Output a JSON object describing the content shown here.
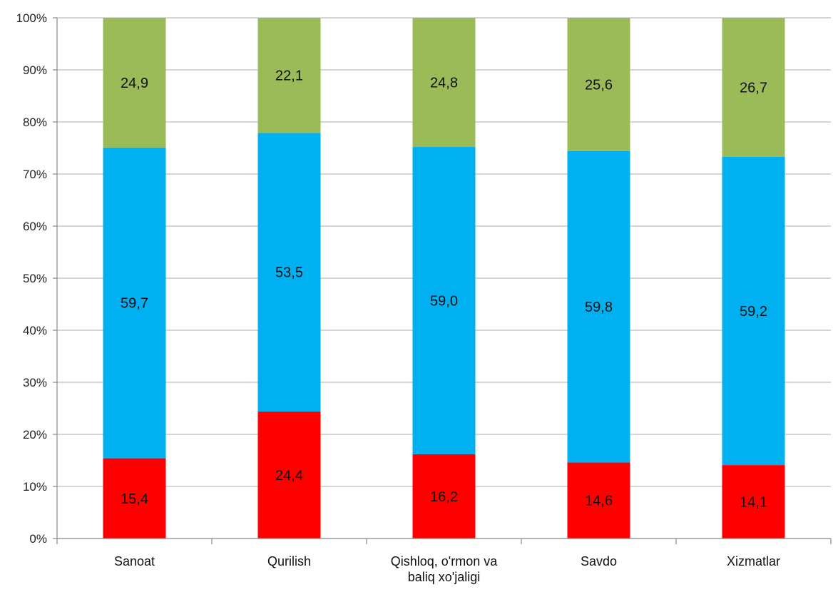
{
  "chart_data": {
    "type": "bar",
    "stacked": true,
    "percent_stacked": true,
    "categories": [
      "Sanoat",
      "Qurilish",
      "Qishloq, o'rmon va baliq xo'jaligi",
      "Savdo",
      "Xizmatlar"
    ],
    "category_lines": [
      [
        "Sanoat"
      ],
      [
        "Qurilish"
      ],
      [
        "Qishloq, o'rmon va",
        "baliq xo'jaligi"
      ],
      [
        "Savdo"
      ],
      [
        "Xizmatlar"
      ]
    ],
    "series": [
      {
        "color": "#ff0000",
        "values": [
          15.4,
          24.4,
          16.2,
          14.6,
          14.1
        ],
        "labels": [
          "15,4",
          "24,4",
          "16,2",
          "14,6",
          "14,1"
        ]
      },
      {
        "color": "#00b0f0",
        "values": [
          59.7,
          53.5,
          59.0,
          59.8,
          59.2
        ],
        "labels": [
          "59,7",
          "53,5",
          "59,0",
          "59,8",
          "59,2"
        ]
      },
      {
        "color": "#9bbb59",
        "values": [
          24.9,
          22.1,
          24.8,
          25.6,
          26.7
        ],
        "labels": [
          "24,9",
          "22,1",
          "24,8",
          "25,6",
          "26,7"
        ]
      }
    ],
    "ylim": [
      0,
      100
    ],
    "yticks": [
      "0%",
      "10%",
      "20%",
      "30%",
      "40%",
      "50%",
      "60%",
      "70%",
      "80%",
      "90%",
      "100%"
    ],
    "grid": true,
    "legend": "none",
    "title": "",
    "xlabel": "",
    "ylabel": ""
  }
}
